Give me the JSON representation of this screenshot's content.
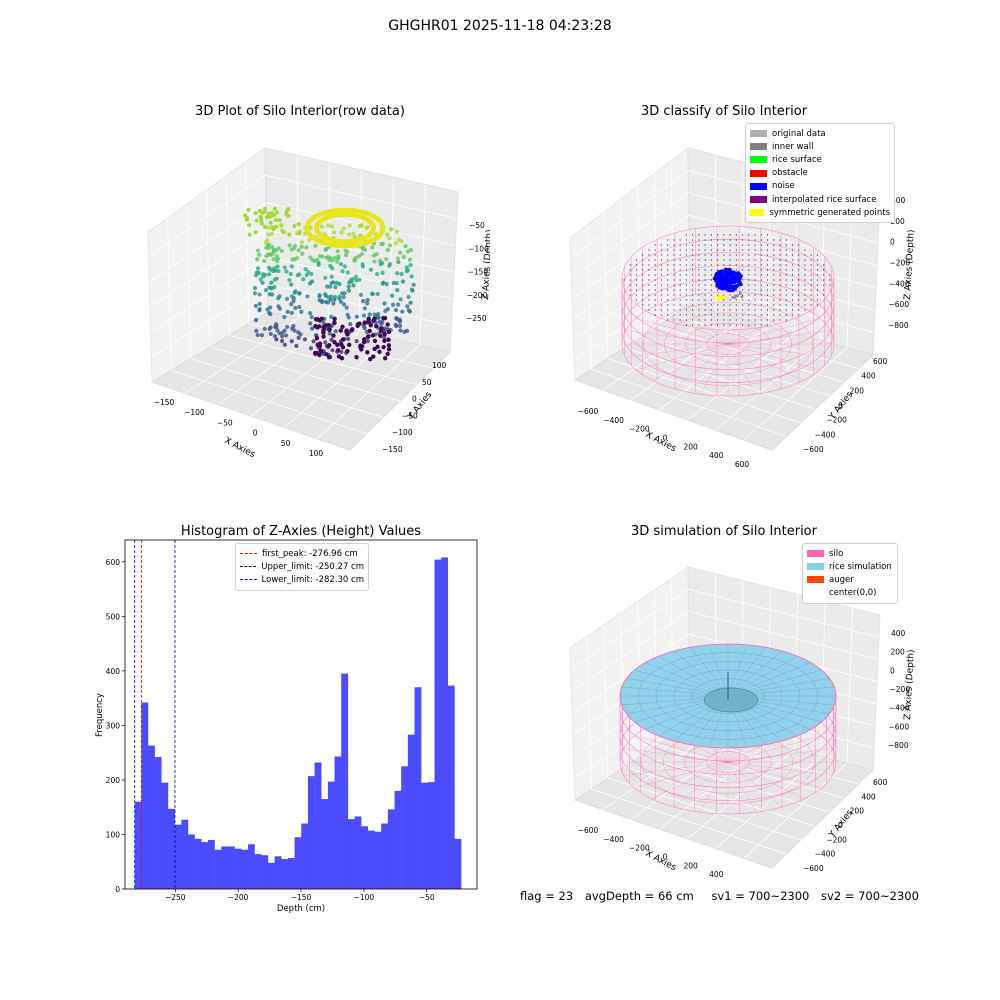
{
  "figure": {
    "suptitle": "GHGHR01 2025-11-18 04:23:28",
    "footer": {
      "flag": "flag = 23",
      "avg_depth": "avgDepth = 66 cm",
      "sv1": "sv1 = 700~2300",
      "sv2": "sv2 = 700~2300"
    }
  },
  "panels": {
    "raw": {
      "title": "3D Plot of Silo Interior(row data)",
      "xlabel": "X Axies",
      "ylabel": "Y Axies",
      "zlabel": "Z Axies (Depth)",
      "xticks": [
        "-150",
        "-100",
        "-50",
        "0",
        "50",
        "100"
      ],
      "yticks": [
        "100",
        "50",
        "0",
        "-50",
        "-100",
        "-150"
      ],
      "zticks": [
        "-50",
        "-100",
        "-150",
        "-200",
        "-250"
      ]
    },
    "classify": {
      "title": "3D classify of Silo Interior",
      "xlabel": "X Axies",
      "ylabel": "Y Axies",
      "zlabel": "Z Axies (Depth)",
      "xticks": [
        "-600",
        "-400",
        "-200",
        "0",
        "200",
        "400",
        "600"
      ],
      "yticks": [
        "600",
        "400",
        "200",
        "0",
        "-200",
        "-400",
        "-600"
      ],
      "zticks": [
        "400",
        "200",
        "0",
        "-200",
        "-400",
        "-600",
        "-800"
      ],
      "legend": [
        {
          "label": "original data",
          "color": "#b0b0b0"
        },
        {
          "label": "inner wall",
          "color": "#808080"
        },
        {
          "label": "rice surface",
          "color": "#00ff00"
        },
        {
          "label": "obstacle",
          "color": "#ff0000"
        },
        {
          "label": "noise",
          "color": "#0000ff"
        },
        {
          "label": "interpolated rice surface",
          "color": "#800080"
        },
        {
          "label": "symmetric generated points",
          "color": "#ffff00"
        }
      ]
    },
    "simulation": {
      "title": "3D simulation of Silo Interior",
      "xlabel": "X Axies",
      "ylabel": "Y Axies",
      "zlabel": "Z Axies (Depth)",
      "xticks": [
        "-600",
        "-400",
        "-200",
        "0",
        "200",
        "400",
        "600"
      ],
      "yticks": [
        "600",
        "400",
        "200",
        "0",
        "-200",
        "-400",
        "-600"
      ],
      "zticks": [
        "400",
        "200",
        "0",
        "-200",
        "-400",
        "-600",
        "-800"
      ],
      "legend": [
        {
          "label": "silo",
          "color": "#ff69b4"
        },
        {
          "label": "rice simulation",
          "color": "#87ceeb"
        },
        {
          "label": "auger",
          "color": "#ff4500"
        },
        {
          "label": "center(0,0)",
          "color": "#ffffff"
        }
      ]
    }
  },
  "chart_data": {
    "type": "bar",
    "title": "Histogram of Z-Axies (Height) Values",
    "xlabel": "Depth (cm)",
    "ylabel": "Frequency",
    "xlim": [
      -290,
      -10
    ],
    "ylim": [
      0,
      640
    ],
    "xticks": [
      -250,
      -200,
      -150,
      -100,
      -50
    ],
    "yticks": [
      0,
      100,
      200,
      300,
      400,
      500,
      600
    ],
    "bin_start": -282.3,
    "bin_width": 5.3,
    "bar_color": "#4b4bff",
    "values": [
      160,
      342,
      263,
      242,
      195,
      147,
      118,
      127,
      100,
      92,
      86,
      90,
      72,
      78,
      78,
      74,
      72,
      82,
      64,
      62,
      48,
      60,
      55,
      57,
      95,
      120,
      207,
      232,
      165,
      197,
      243,
      395,
      128,
      133,
      115,
      107,
      105,
      120,
      146,
      180,
      225,
      283,
      370,
      195,
      196,
      604,
      608,
      373,
      92
    ],
    "vlines": [
      {
        "name": "first_peak: -276.96 cm",
        "x": -276.96,
        "color": "#ff0000"
      },
      {
        "name": "Upper_limit: -250.27 cm",
        "x": -250.27,
        "color": "#00008b"
      },
      {
        "name": "Lower_limit: -282.30 cm",
        "x": -282.3,
        "color": "#0000ff"
      }
    ],
    "legend_position": "upper-center"
  }
}
